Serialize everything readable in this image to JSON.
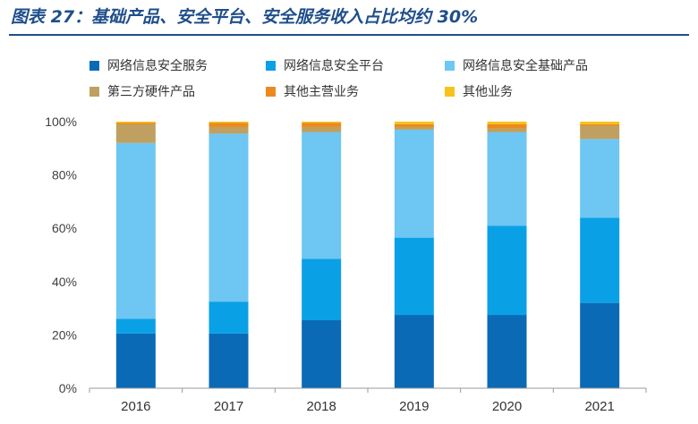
{
  "header": {
    "title": "图表 27：基础产品、安全平台、安全服务收入占比均约 30%"
  },
  "chart_data": {
    "type": "bar",
    "stacked": true,
    "categories": [
      "2016",
      "2017",
      "2018",
      "2019",
      "2020",
      "2021"
    ],
    "ylim": [
      0,
      100
    ],
    "yticks": [
      "0%",
      "20%",
      "40%",
      "60%",
      "80%",
      "100%"
    ],
    "legend_position": "top",
    "grid": false,
    "series": [
      {
        "name": "网络信息安全服务",
        "color": "#0a6ab6",
        "values": [
          20.5,
          20.5,
          25.5,
          27.5,
          27.5,
          32.0
        ]
      },
      {
        "name": "网络信息安全平台",
        "color": "#0aa0e6",
        "values": [
          5.5,
          12.0,
          23.0,
          29.0,
          33.5,
          32.0
        ]
      },
      {
        "name": "网络信息安全基础产品",
        "color": "#6ec6f2",
        "values": [
          66.0,
          63.0,
          47.5,
          40.5,
          35.0,
          29.5
        ]
      },
      {
        "name": "第三方硬件产品",
        "color": "#bfa060",
        "values": [
          7.0,
          2.5,
          2.0,
          1.0,
          1.5,
          5.0
        ]
      },
      {
        "name": "其他主营业务",
        "color": "#ea8a1e",
        "values": [
          0.5,
          1.5,
          1.5,
          1.0,
          1.5,
          0.5
        ]
      },
      {
        "name": "其他业务",
        "color": "#f8c21c",
        "values": [
          0.5,
          0.5,
          0.5,
          1.0,
          1.0,
          1.0
        ]
      }
    ]
  }
}
